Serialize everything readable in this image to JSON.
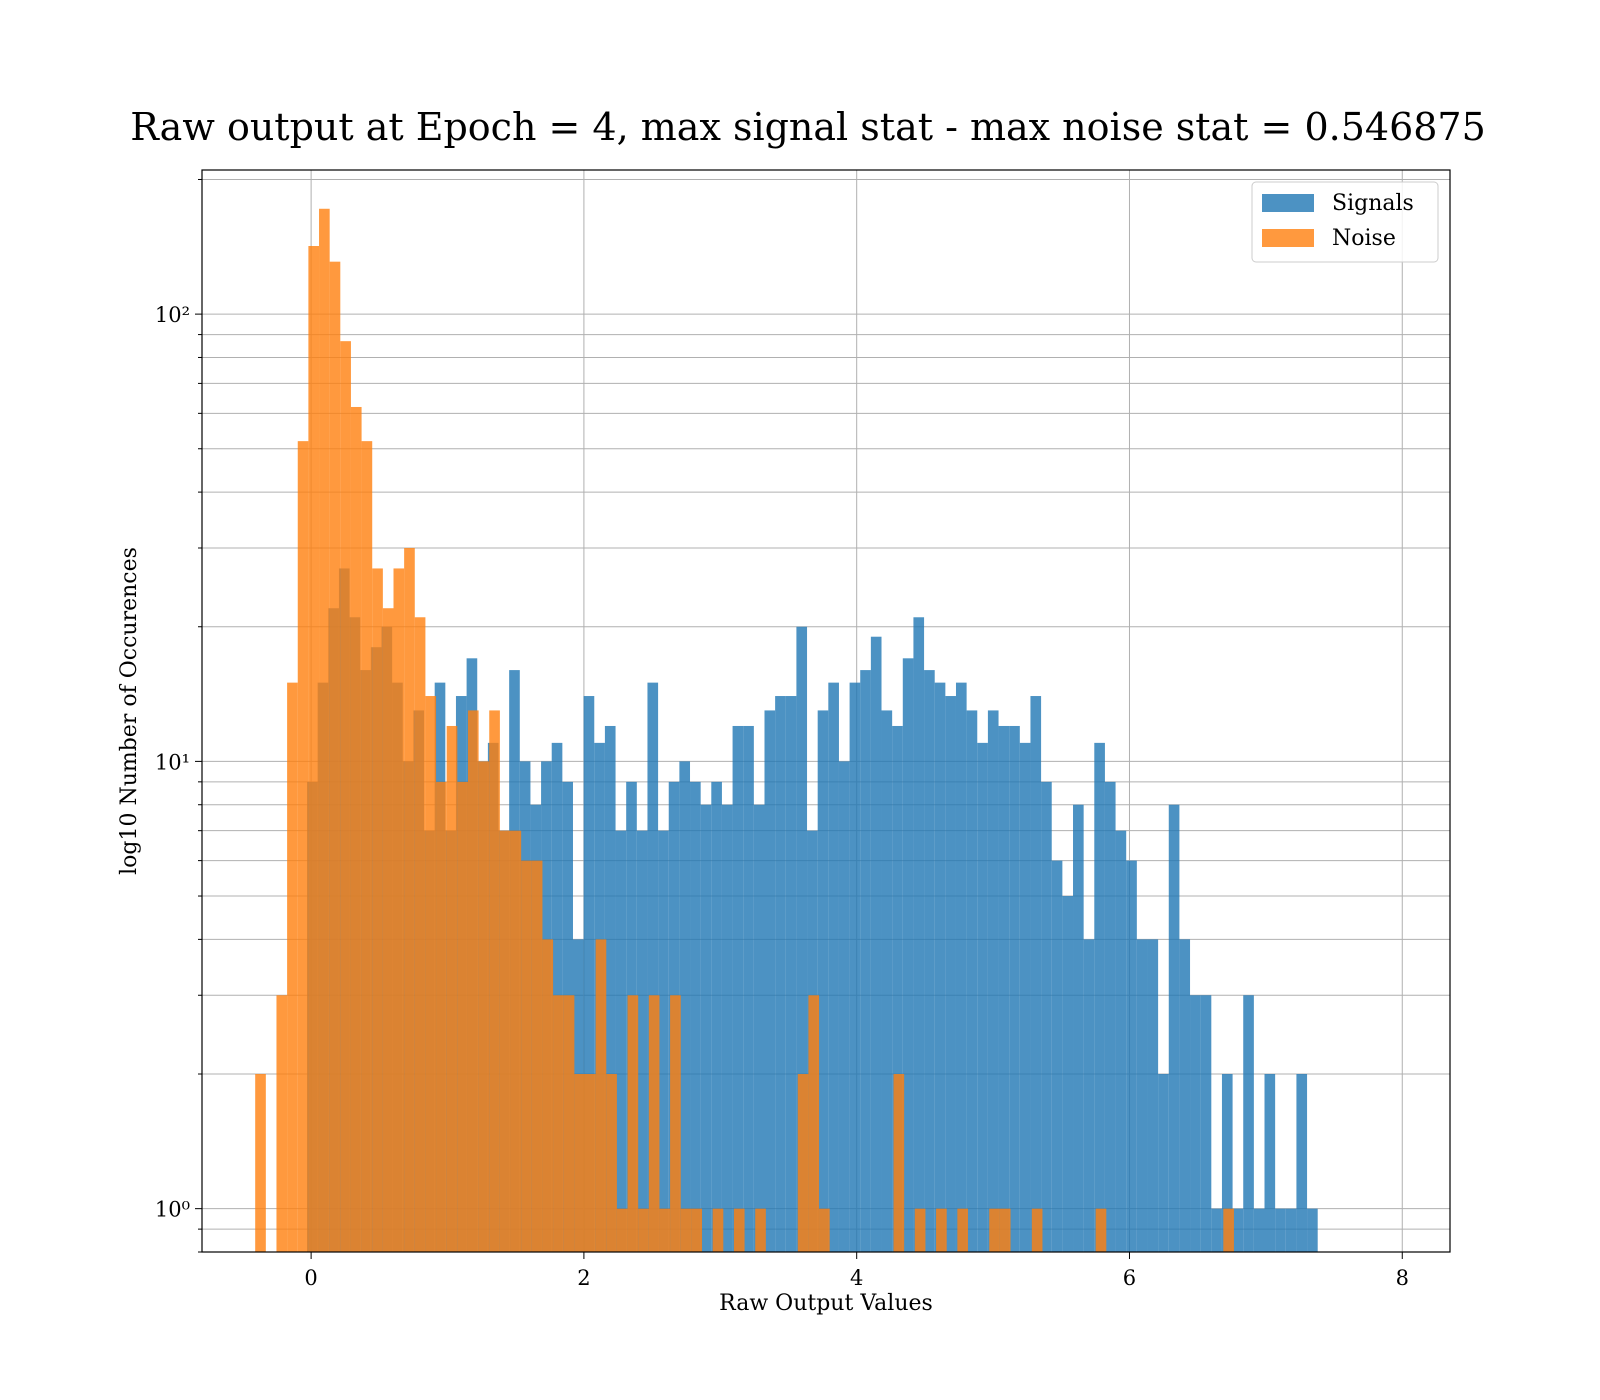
{
  "chart_data": {
    "type": "bar",
    "title": "Raw output at Epoch = 4, max signal stat - max noise stat = 0.546875",
    "xlabel": "Raw Output Values",
    "ylabel": "log10 Number of Occurences",
    "x_range": [
      -0.8,
      8.35
    ],
    "y_range": [
      0.8,
      210
    ],
    "y_scale": "log",
    "x_ticks": [
      0,
      2,
      4,
      6,
      8
    ],
    "y_ticks": [
      1,
      10,
      100
    ],
    "y_tick_labels": [
      "10⁰",
      "10¹",
      "10²"
    ],
    "grid": true,
    "legend_position": "top-right",
    "series": [
      {
        "name": "Signals",
        "color": "#1f77b4",
        "bin_start": -0.03,
        "bin_width": 0.078,
        "values": [
          9,
          15,
          22,
          27,
          21,
          16,
          18,
          20,
          15,
          10,
          13,
          7,
          15,
          7,
          14,
          17,
          10,
          11,
          7,
          16,
          10,
          8,
          10,
          11,
          9,
          4,
          14,
          11,
          12,
          7,
          9,
          7,
          15,
          7,
          9,
          10,
          9,
          8,
          9,
          8,
          12,
          12,
          8,
          13,
          14,
          14,
          20,
          7,
          13,
          15,
          10,
          15,
          16,
          19,
          13,
          12,
          17,
          21,
          16,
          15,
          14,
          15,
          13,
          11,
          13,
          12,
          12,
          11,
          14,
          9,
          6,
          5,
          8,
          4,
          11,
          9,
          7,
          6,
          4,
          4,
          2,
          8,
          4,
          3,
          3,
          1,
          2,
          1,
          3,
          1,
          2,
          1,
          1,
          2,
          1
        ]
      },
      {
        "name": "Noise",
        "color": "#ff7f0e",
        "bin_start": -0.41,
        "bin_width": 0.078,
        "values": [
          2,
          0,
          3,
          15,
          52,
          142,
          172,
          131,
          87,
          62,
          52,
          27,
          22,
          27,
          30,
          21,
          14,
          9,
          12,
          9,
          13,
          10,
          13,
          7,
          7,
          6,
          6,
          4,
          3,
          3,
          2,
          2,
          4,
          2,
          1,
          3,
          1,
          3,
          1,
          3,
          1,
          1,
          0,
          1,
          0,
          1,
          0,
          1,
          0,
          0,
          0,
          2,
          3,
          1,
          0,
          0,
          0,
          0,
          0,
          0,
          2,
          0,
          1,
          0,
          1,
          0,
          1,
          0,
          0,
          1,
          1,
          0,
          0,
          1,
          0,
          0,
          0,
          0,
          0,
          1,
          0,
          0,
          0,
          0,
          0,
          0,
          0,
          0,
          0,
          0,
          0,
          1
        ]
      }
    ]
  }
}
